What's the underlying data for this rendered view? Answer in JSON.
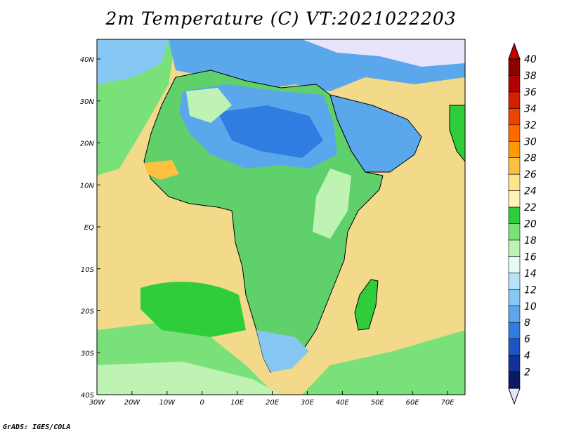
{
  "title": "2m Temperature (C) VT:2021022203",
  "credit": "GrADS: IGES/COLA",
  "map": {
    "projection": "lat-lon",
    "lon_range": [
      -30,
      75
    ],
    "lat_range": [
      -40,
      45
    ],
    "x_ticks": [
      "30W",
      "20W",
      "10W",
      "0",
      "10E",
      "20E",
      "30E",
      "40E",
      "50E",
      "60E",
      "70E"
    ],
    "y_ticks": [
      "40N",
      "30N",
      "20N",
      "10N",
      "EQ",
      "10S",
      "20S",
      "30S",
      "40S"
    ],
    "ocean_color": "#f3d98a",
    "land_color": "#5fd06a"
  },
  "colorbar": {
    "labels": [
      "40",
      "38",
      "36",
      "34",
      "32",
      "30",
      "28",
      "26",
      "24",
      "22",
      "20",
      "18",
      "16",
      "14",
      "12",
      "10",
      "8",
      "6",
      "4",
      "2"
    ],
    "colors": [
      "#8b0000",
      "#b30000",
      "#d41f00",
      "#ee4200",
      "#ff6a00",
      "#ff9a00",
      "#ffbf40",
      "#ffe58a",
      "#fff4b5",
      "#2fcd3a",
      "#7ae17a",
      "#bff3b3",
      "#e6fbf8",
      "#b7e3fa",
      "#87c7f4",
      "#5aa7ec",
      "#2f7de0",
      "#1c56c4",
      "#123198",
      "#0b1a64"
    ],
    "top_cap_color": "#c40000",
    "bottom_cap_color": "#e8e4fb"
  }
}
